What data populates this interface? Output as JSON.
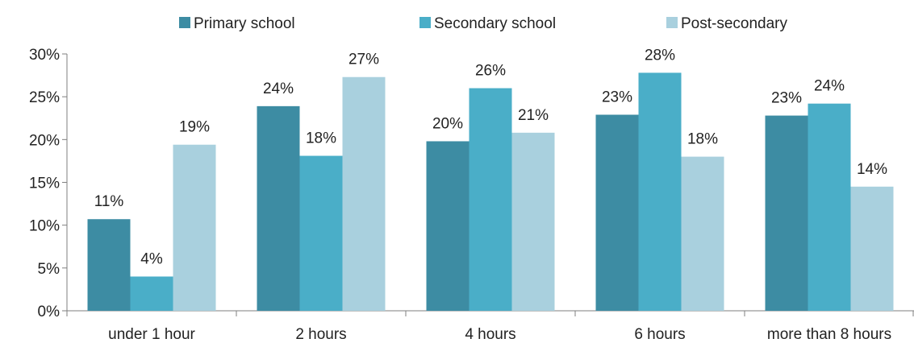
{
  "chart_data": {
    "type": "bar",
    "title": "",
    "xlabel": "",
    "ylabel": "",
    "categories": [
      "under 1 hour",
      "2 hours",
      "4 hours",
      "6 hours",
      "more than 8 hours"
    ],
    "series": [
      {
        "name": "Primary school",
        "color": "#3d8ca3",
        "values": [
          10.7,
          23.9,
          19.8,
          22.9,
          22.8
        ],
        "labels": [
          "11%",
          "24%",
          "20%",
          "23%",
          "23%"
        ]
      },
      {
        "name": "Secondary school",
        "color": "#4aaec8",
        "values": [
          4.0,
          18.1,
          26.0,
          27.8,
          24.2
        ],
        "labels": [
          "4%",
          "18%",
          "26%",
          "28%",
          "24%"
        ]
      },
      {
        "name": "Post-secondary",
        "color": "#a9d0de",
        "values": [
          19.4,
          27.3,
          20.8,
          18.0,
          14.5
        ],
        "labels": [
          "19%",
          "27%",
          "21%",
          "18%",
          "14%"
        ]
      }
    ],
    "ylim": [
      0,
      30
    ],
    "yticks": [
      0,
      5,
      10,
      15,
      20,
      25,
      30
    ],
    "ytick_labels": [
      "0%",
      "5%",
      "10%",
      "15%",
      "20%",
      "25%",
      "30%"
    ],
    "grid": false,
    "legend_position": "top"
  }
}
